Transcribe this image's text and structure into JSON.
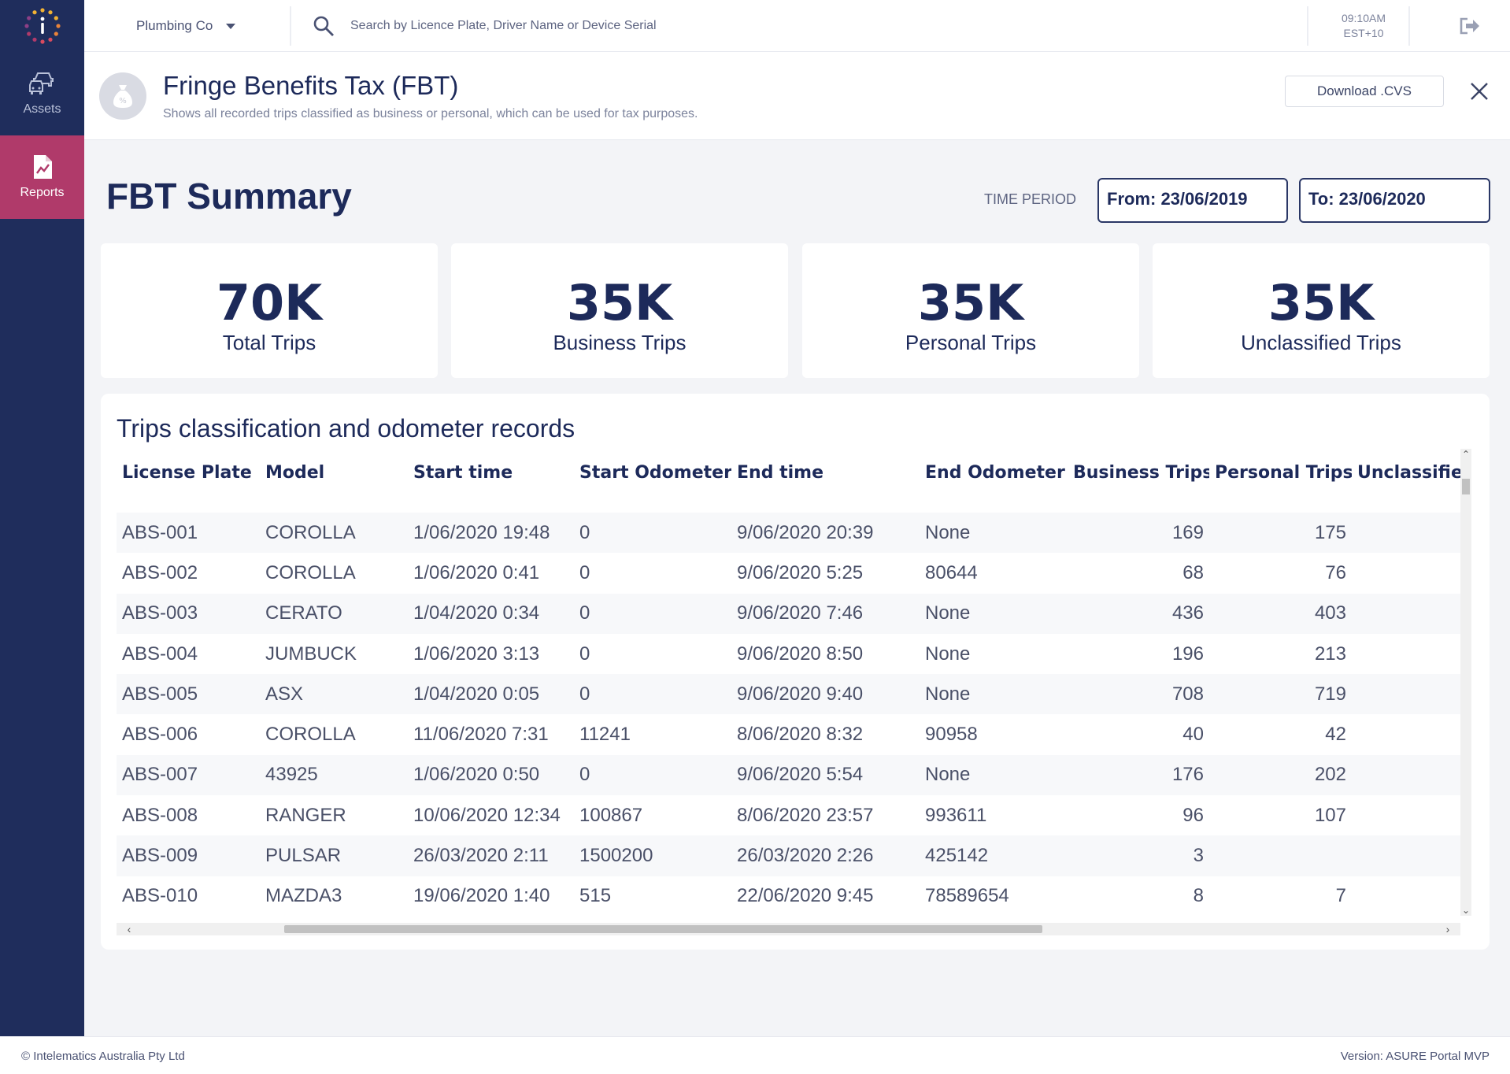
{
  "nav": {
    "items": [
      {
        "label": "Assets",
        "icon": "car-icon",
        "active": false
      },
      {
        "label": "Reports",
        "icon": "report-chart-icon",
        "active": true
      }
    ]
  },
  "topbar": {
    "company": "Plumbing Co",
    "search_placeholder": "Search by Licence Plate, Driver Name or Device Serial",
    "time": "09:10AM",
    "timezone": "EST+10"
  },
  "page": {
    "title": "Fringe Benefits Tax (FBT)",
    "subtitle": "Shows all recorded trips classified as business or personal, which can be used for tax purposes.",
    "download_label": "Download .CVS"
  },
  "summary": {
    "title": "FBT Summary",
    "time_period_label": "TIME PERIOD",
    "from": "From: 23/06/2019",
    "to": "To: 23/06/2020",
    "cards": [
      {
        "value": "70K",
        "label": "Total Trips"
      },
      {
        "value": "35K",
        "label": "Business Trips"
      },
      {
        "value": "35K",
        "label": "Personal Trips"
      },
      {
        "value": "35K",
        "label": "Unclassified Trips"
      }
    ]
  },
  "table": {
    "title": "Trips classification and odometer records",
    "headers": [
      "License Plate",
      "Model",
      "Start time",
      "Start Odometer",
      "End time",
      "End Odometer",
      "Business Trips",
      "Personal Trips",
      "Unclassified Trips"
    ],
    "rows": [
      [
        "ABS-001",
        "COROLLA",
        "1/06/2020 19:48",
        "0",
        "9/06/2020 20:39",
        "None",
        "169",
        "175",
        ""
      ],
      [
        "ABS-002",
        "COROLLA",
        "1/06/2020 0:41",
        "0",
        "9/06/2020 5:25",
        "80644",
        "68",
        "76",
        ""
      ],
      [
        "ABS-003",
        "CERATO",
        "1/04/2020 0:34",
        "0",
        "9/06/2020 7:46",
        "None",
        "436",
        "403",
        ""
      ],
      [
        "ABS-004",
        "JUMBUCK",
        "1/06/2020 3:13",
        "0",
        "9/06/2020 8:50",
        "None",
        "196",
        "213",
        ""
      ],
      [
        "ABS-005",
        "ASX",
        "1/04/2020 0:05",
        "0",
        "9/06/2020 9:40",
        "None",
        "708",
        "719",
        ""
      ],
      [
        "ABS-006",
        "COROLLA",
        "11/06/2020 7:31",
        "11241",
        "8/06/2020 8:32",
        "90958",
        "40",
        "42",
        ""
      ],
      [
        "ABS-007",
        "43925",
        "1/06/2020 0:50",
        "0",
        "9/06/2020 5:54",
        "None",
        "176",
        "202",
        ""
      ],
      [
        "ABS-008",
        "RANGER",
        "10/06/2020 12:34",
        "100867",
        "8/06/2020 23:57",
        "993611",
        "96",
        "107",
        ""
      ],
      [
        "ABS-009",
        "PULSAR",
        "26/03/2020 2:11",
        "1500200",
        "26/03/2020 2:26",
        "425142",
        "3",
        "",
        ""
      ],
      [
        "ABS-010",
        "MAZDA3",
        "19/06/2020 1:40",
        "515",
        "22/06/2020 9:45",
        "78589654",
        "8",
        "7",
        ""
      ]
    ]
  },
  "footer": {
    "copyright": "© Intelematics Australia Pty Ltd",
    "version": "Version: ASURE Portal MVP"
  },
  "colors": {
    "sidebar": "#1f2d5c",
    "active_nav": "#b03a6a",
    "primary_text": "#1d2a5a",
    "background": "#f3f4f7"
  }
}
